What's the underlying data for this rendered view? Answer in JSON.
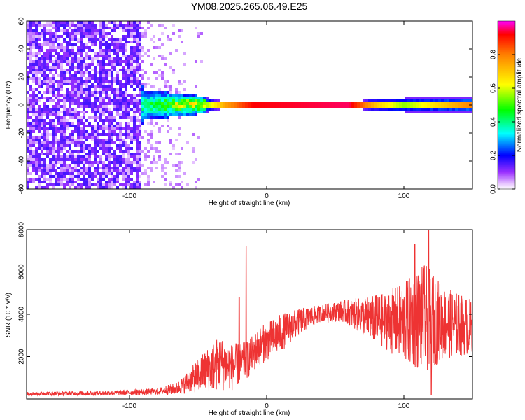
{
  "figure": {
    "title": "YM08.2025.265.06.49.E25"
  },
  "chart_data": [
    {
      "type": "heatmap",
      "title": "",
      "xlabel": "Height of straight line (km)",
      "ylabel": "Frequency (Hz)",
      "xlim": [
        -175,
        150
      ],
      "ylim": [
        -60,
        60
      ],
      "x_ticks": [
        -100,
        0,
        100
      ],
      "y_ticks": [
        -60,
        -40,
        -20,
        0,
        20,
        40,
        60
      ],
      "colorbar": {
        "label": "Normalized spectral amplitude",
        "range": [
          0,
          1
        ],
        "ticks": [
          0.0,
          0.2,
          0.4,
          0.6,
          0.8
        ]
      },
      "band_halfwidth_hz": [
        {
          "x": -175,
          "hz": 60
        },
        {
          "x": -95,
          "hz": 60
        },
        {
          "x": -90,
          "hz": 10
        },
        {
          "x": -70,
          "hz": 9
        },
        {
          "x": -50,
          "hz": 7
        },
        {
          "x": -35,
          "hz": 3
        },
        {
          "x": 0,
          "hz": 2
        },
        {
          "x": 65,
          "hz": 2
        },
        {
          "x": 75,
          "hz": 4
        },
        {
          "x": 100,
          "hz": 5
        },
        {
          "x": 150,
          "hz": 5
        }
      ],
      "line_intensity": [
        {
          "x": -90,
          "v": 0.25
        },
        {
          "x": -70,
          "v": 0.42
        },
        {
          "x": -45,
          "v": 0.55
        },
        {
          "x": -30,
          "v": 0.75
        },
        {
          "x": -10,
          "v": 0.92
        },
        {
          "x": 60,
          "v": 0.95
        },
        {
          "x": 80,
          "v": 0.7
        },
        {
          "x": 100,
          "v": 0.55
        },
        {
          "x": 150,
          "v": 0.8
        }
      ],
      "grid": false
    },
    {
      "type": "line",
      "title": "",
      "xlabel": "Height of straight line (km)",
      "ylabel": "SNR (10 * v/v)",
      "xlim": [
        -175,
        150
      ],
      "ylim": [
        0,
        8000
      ],
      "x_ticks": [
        -100,
        0,
        100
      ],
      "y_ticks": [
        2000,
        4000,
        6000,
        8000
      ],
      "color": "#ee3333",
      "envelope": [
        {
          "x": -175,
          "mean": 250,
          "spread": 90
        },
        {
          "x": -120,
          "mean": 270,
          "spread": 100
        },
        {
          "x": -80,
          "mean": 350,
          "spread": 150
        },
        {
          "x": -65,
          "mean": 500,
          "spread": 300
        },
        {
          "x": -55,
          "mean": 900,
          "spread": 600
        },
        {
          "x": -45,
          "mean": 1300,
          "spread": 1000
        },
        {
          "x": -35,
          "mean": 1700,
          "spread": 1300
        },
        {
          "x": -25,
          "mean": 1500,
          "spread": 1100
        },
        {
          "x": -15,
          "mean": 1800,
          "spread": 900
        },
        {
          "x": -5,
          "mean": 2500,
          "spread": 900
        },
        {
          "x": 10,
          "mean": 3100,
          "spread": 900
        },
        {
          "x": 25,
          "mean": 3700,
          "spread": 600
        },
        {
          "x": 40,
          "mean": 4050,
          "spread": 400
        },
        {
          "x": 55,
          "mean": 4150,
          "spread": 500
        },
        {
          "x": 70,
          "mean": 3900,
          "spread": 900
        },
        {
          "x": 85,
          "mean": 3700,
          "spread": 1300
        },
        {
          "x": 100,
          "mean": 3600,
          "spread": 1900
        },
        {
          "x": 115,
          "mean": 3800,
          "spread": 2600
        },
        {
          "x": 130,
          "mean": 3600,
          "spread": 1700
        },
        {
          "x": 150,
          "mean": 3400,
          "spread": 1300
        }
      ],
      "peaks": [
        {
          "x": -15,
          "y": 7200
        },
        {
          "x": 118,
          "y": 8200
        },
        {
          "x": 108,
          "y": 7300
        },
        {
          "x": 120,
          "y": 200
        },
        {
          "x": -20,
          "y": 4800
        }
      ],
      "grid": false
    }
  ]
}
